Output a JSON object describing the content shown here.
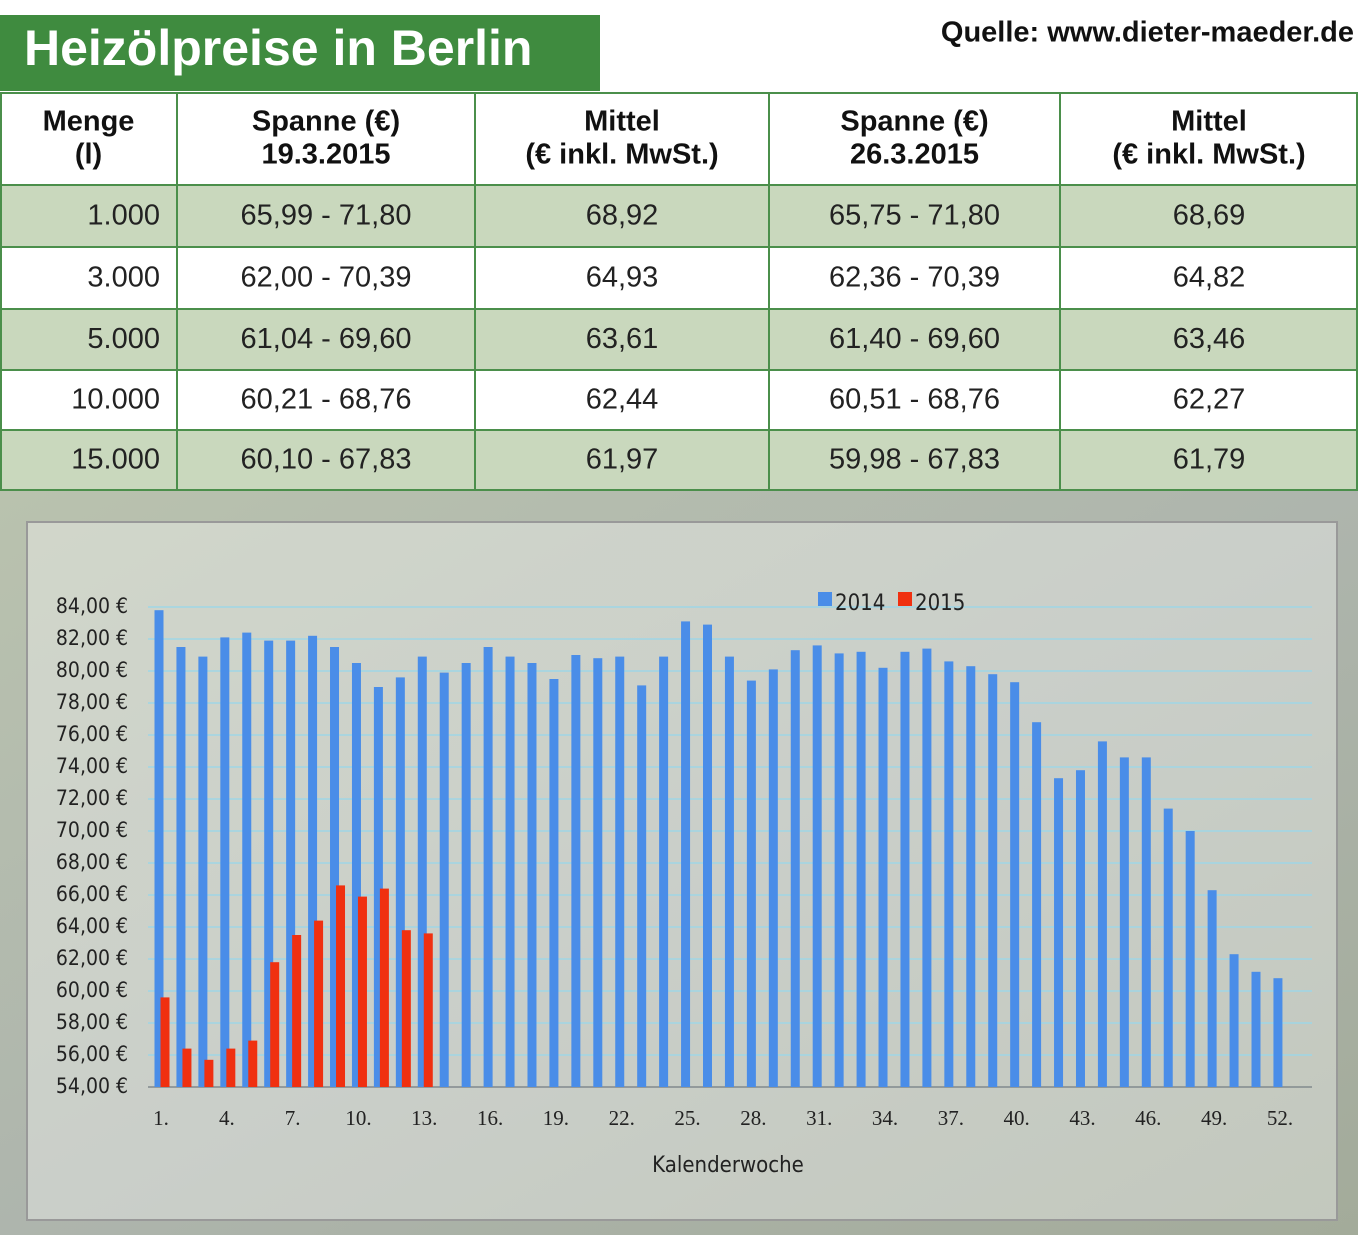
{
  "title": "Heizölpreise in Berlin",
  "source": "Quelle: www.dieter-maeder.de",
  "table": {
    "header": [
      [
        "Menge",
        "(l)"
      ],
      [
        "Spanne (€)",
        "19.3.2015"
      ],
      [
        "Mittel",
        "(€ inkl. MwSt.)"
      ],
      [
        "Spanne (€)",
        "26.3.2015"
      ],
      [
        "Mittel",
        "(€ inkl. MwSt.)"
      ]
    ],
    "rows": [
      [
        "1.000",
        "65,99 - 71,80",
        "68,92",
        "65,75 - 71,80",
        "68,69"
      ],
      [
        "3.000",
        "62,00 - 70,39",
        "64,93",
        "62,36 - 70,39",
        "64,82"
      ],
      [
        "5.000",
        "61,04 - 69,60",
        "63,61",
        "61,40 - 69,60",
        "63,46"
      ],
      [
        "10.000",
        "60,21 - 68,76",
        "62,44",
        "60,51 - 68,76",
        "62,27"
      ],
      [
        "15.000",
        "60,10 - 67,83",
        "61,97",
        "59,98 - 67,83",
        "61,79"
      ]
    ]
  },
  "chart_data": {
    "type": "bar",
    "x_label": "Kalenderwoche",
    "categories": [
      "1.",
      null,
      null,
      "4.",
      null,
      null,
      "7.",
      null,
      null,
      "10.",
      null,
      null,
      "13.",
      null,
      null,
      "16.",
      null,
      null,
      "19.",
      null,
      null,
      "22.",
      null,
      null,
      "25.",
      null,
      null,
      "28.",
      null,
      null,
      "31.",
      null,
      null,
      "34.",
      null,
      null,
      "37.",
      null,
      null,
      "40.",
      null,
      null,
      "43.",
      null,
      null,
      "46.",
      null,
      null,
      "49.",
      null,
      null,
      "52."
    ],
    "series": [
      {
        "name": "2014",
        "color": "#4a8de8",
        "values": [
          83.8,
          81.5,
          80.9,
          82.1,
          82.4,
          81.9,
          81.9,
          82.2,
          81.5,
          80.5,
          79.0,
          79.6,
          80.9,
          79.9,
          80.5,
          81.5,
          80.9,
          80.5,
          79.5,
          81.0,
          80.8,
          80.9,
          79.1,
          80.9,
          83.1,
          82.9,
          80.9,
          79.4,
          80.1,
          81.3,
          81.6,
          81.1,
          81.2,
          80.2,
          81.2,
          81.4,
          80.6,
          80.3,
          79.8,
          79.3,
          76.8,
          73.3,
          73.8,
          75.6,
          74.6,
          74.6,
          71.4,
          70.0,
          66.3,
          62.3,
          61.2,
          60.8
        ]
      },
      {
        "name": "2015",
        "color": "#f03010",
        "values": [
          59.6,
          56.4,
          55.7,
          56.4,
          56.9,
          61.8,
          63.5,
          64.4,
          66.6,
          65.9,
          66.4,
          63.8,
          63.6,
          null,
          null,
          null,
          null,
          null,
          null,
          null,
          null,
          null,
          null,
          null,
          null,
          null,
          null,
          null,
          null,
          null,
          null,
          null,
          null,
          null,
          null,
          null,
          null,
          null,
          null,
          null,
          null,
          null,
          null,
          null,
          null,
          null,
          null,
          null,
          null,
          null,
          null,
          null
        ]
      }
    ],
    "ylim": [
      54,
      84
    ],
    "yticks": [
      {
        "value": 54,
        "label": "54,00 €"
      },
      {
        "value": 56,
        "label": "56,00 €"
      },
      {
        "value": 58,
        "label": "58,00 €"
      },
      {
        "value": 60,
        "label": "60,00 €"
      },
      {
        "value": 62,
        "label": "62,00 €"
      },
      {
        "value": 64,
        "label": "64,00 €"
      },
      {
        "value": 66,
        "label": "66,00 €"
      },
      {
        "value": 68,
        "label": "68,00 €"
      },
      {
        "value": 70,
        "label": "70,00 €"
      },
      {
        "value": 72,
        "label": "72,00 €"
      },
      {
        "value": 74,
        "label": "74,00 €"
      },
      {
        "value": 76,
        "label": "76,00 €"
      },
      {
        "value": 78,
        "label": "78,00 €"
      },
      {
        "value": 80,
        "label": "80,00 €"
      },
      {
        "value": 82,
        "label": "82,00 €"
      },
      {
        "value": 84,
        "label": "84,00 €"
      }
    ],
    "grid": true,
    "legend": "top"
  }
}
